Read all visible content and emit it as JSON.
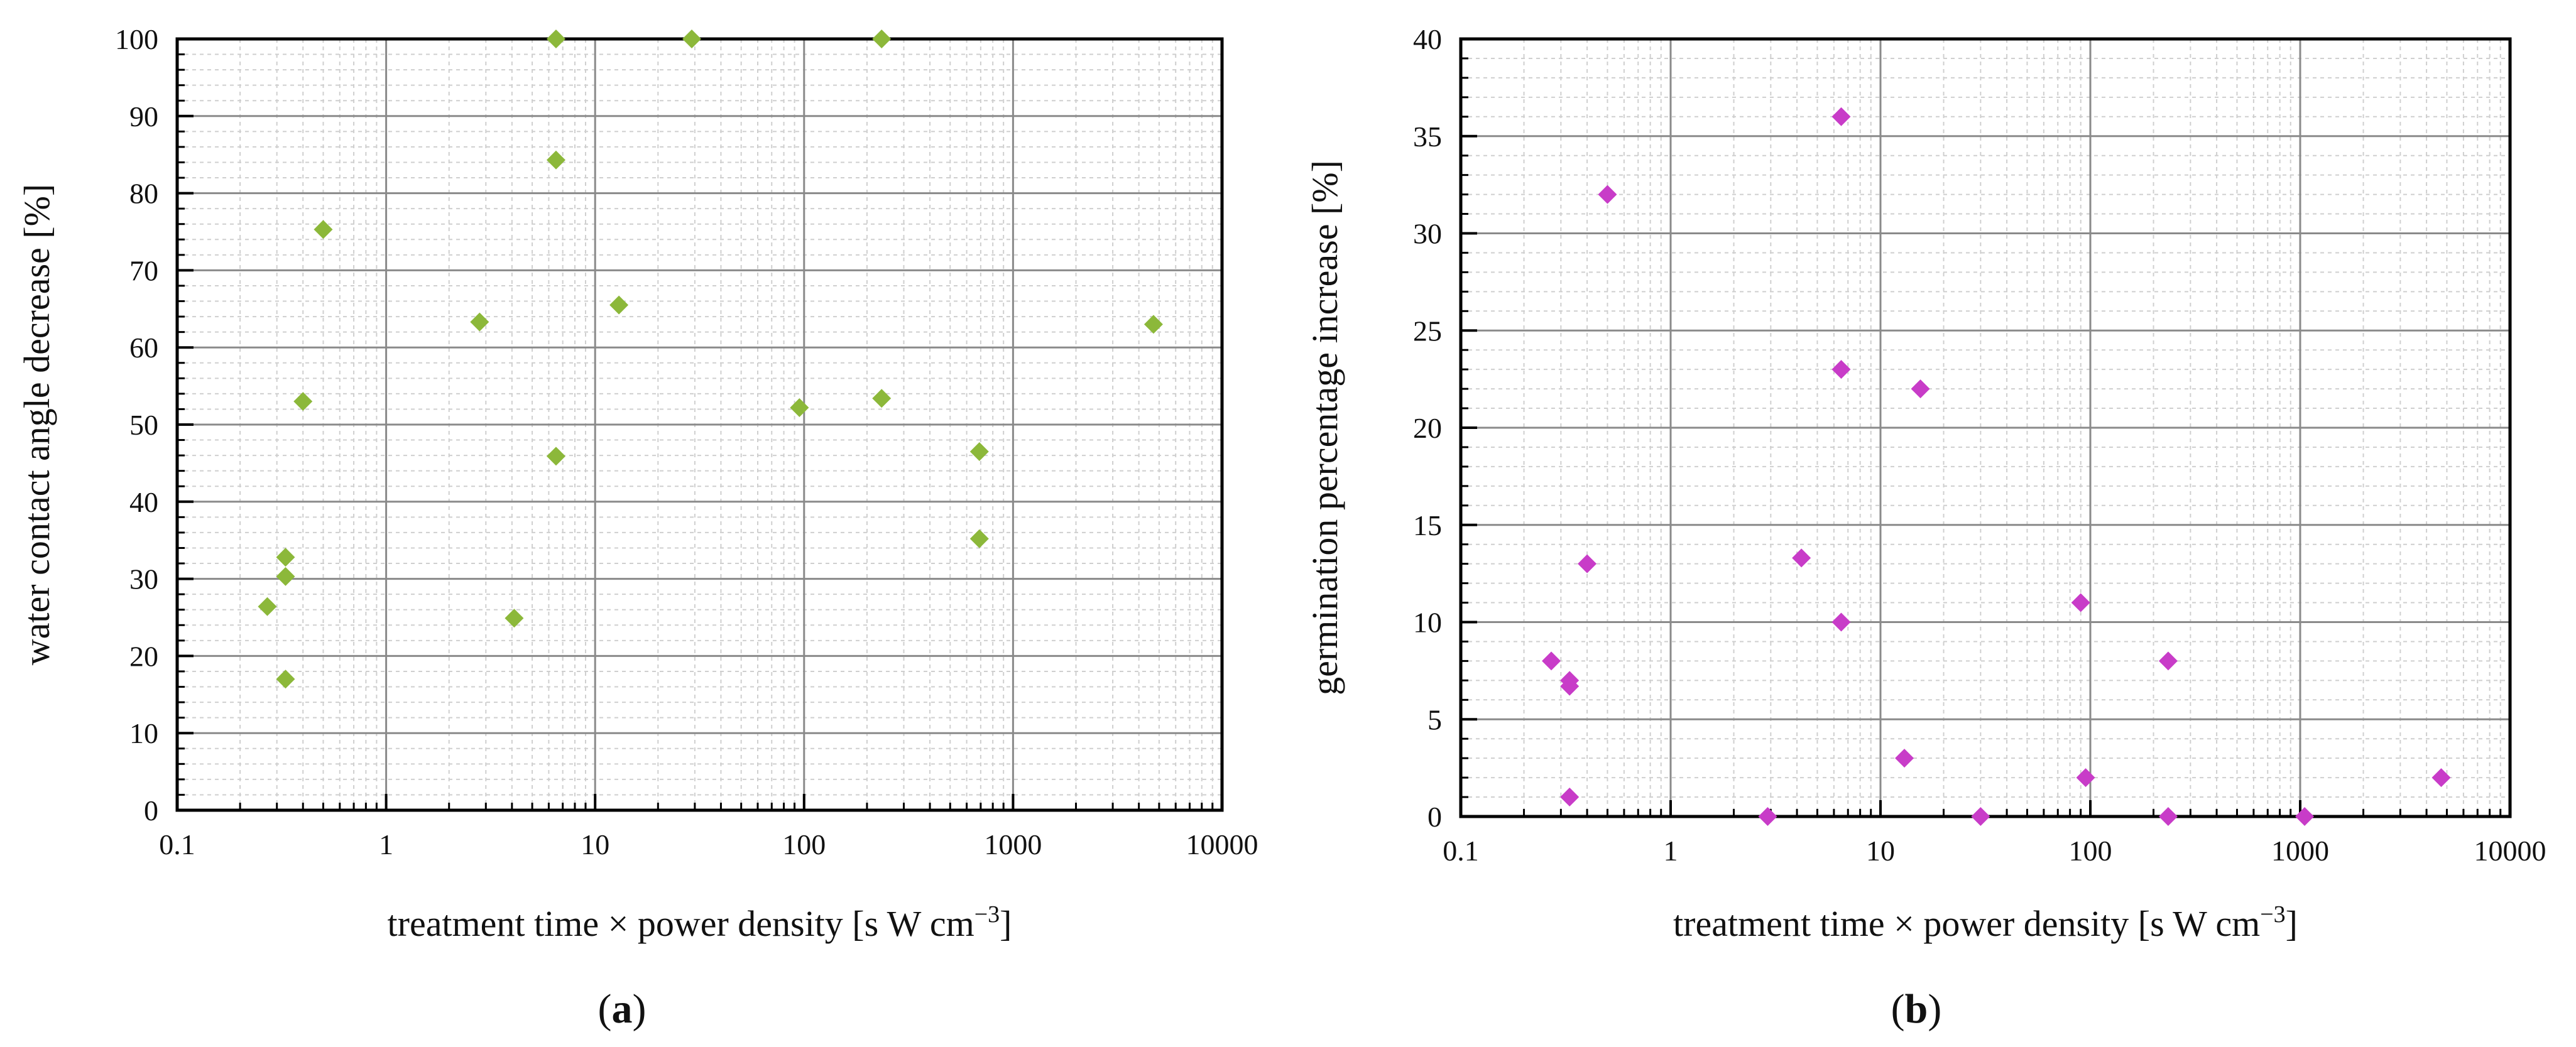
{
  "chart_data": [
    {
      "panel": "a",
      "panel_label_open": "(",
      "panel_label_letter": "a",
      "panel_label_close": ")",
      "type": "scatter",
      "xscale": "log",
      "xlim": [
        0.1,
        10000
      ],
      "ylim": [
        0,
        100
      ],
      "xticks": [
        "0.1",
        "1",
        "10",
        "100",
        "1000",
        "10000"
      ],
      "yticks": [
        "0",
        "10",
        "20",
        "30",
        "40",
        "50",
        "60",
        "70",
        "80",
        "90",
        "100"
      ],
      "xlabel_main": "treatment time × power density [s W cm",
      "xlabel_sup": "−3",
      "xlabel_end": "]",
      "ylabel": "water contact angle decrease [%]",
      "grid": true,
      "marker": "diamond",
      "color": "#8cb83a",
      "series": [
        {
          "name": "water contact angle decrease",
          "x": [
            6.5,
            29,
            235,
            6.5,
            0.5,
            13,
            2.8,
            4700,
            0.4,
            95,
            235,
            6.5,
            690,
            690,
            0.33,
            0.33,
            0.27,
            4.1,
            0.33
          ],
          "y": [
            100,
            100,
            100,
            84.3,
            75.3,
            65.5,
            63.3,
            63.0,
            53.0,
            52.2,
            53.4,
            45.9,
            46.5,
            35.2,
            32.8,
            30.3,
            26.4,
            24.9,
            17.0
          ]
        }
      ]
    },
    {
      "panel": "b",
      "panel_label_open": "(",
      "panel_label_letter": "b",
      "panel_label_close": ")",
      "type": "scatter",
      "xscale": "log",
      "xlim": [
        0.1,
        10000
      ],
      "ylim": [
        0,
        40
      ],
      "xticks": [
        "0.1",
        "1",
        "10",
        "100",
        "1000",
        "10000"
      ],
      "yticks": [
        "0",
        "5",
        "10",
        "15",
        "20",
        "25",
        "30",
        "35",
        "40"
      ],
      "xlabel_main": "treatment time × power density [s W cm",
      "xlabel_sup": "−3",
      "xlabel_end": "]",
      "ylabel": "germination percentage increase [%]",
      "grid": true,
      "marker": "diamond",
      "color": "#c83cc8",
      "series": [
        {
          "name": "germination percentage increase",
          "x": [
            6.5,
            0.5,
            6.5,
            15.5,
            4.2,
            0.4,
            6.5,
            90,
            0.27,
            0.33,
            0.33,
            235,
            13,
            95,
            4700,
            0.33,
            2.9,
            30,
            235,
            1050
          ],
          "y": [
            36,
            32,
            23,
            22,
            13.3,
            13,
            10,
            11,
            8,
            7,
            6.7,
            8,
            3,
            2,
            2,
            1,
            0,
            0,
            0,
            0
          ]
        }
      ]
    }
  ]
}
